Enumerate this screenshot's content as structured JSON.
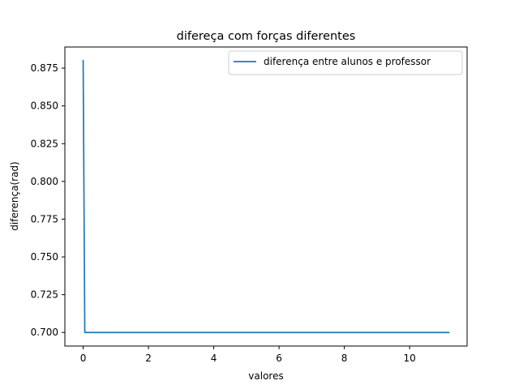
{
  "chart_data": {
    "type": "line",
    "title": "difereça com forças diferentes",
    "xlabel": "valores",
    "ylabel": "diferença(rad)",
    "xlim": [
      -0.56,
      11.76
    ],
    "ylim": [
      0.691,
      0.889
    ],
    "x_ticks": [
      0,
      2,
      4,
      6,
      8,
      10
    ],
    "x_tick_labels": [
      "0",
      "2",
      "4",
      "6",
      "8",
      "10"
    ],
    "y_ticks": [
      0.7,
      0.725,
      0.75,
      0.775,
      0.8,
      0.825,
      0.85,
      0.875
    ],
    "y_tick_labels": [
      "0.700",
      "0.725",
      "0.750",
      "0.775",
      "0.800",
      "0.825",
      "0.850",
      "0.875"
    ],
    "grid": false,
    "legend_position": "top-right",
    "series": [
      {
        "name": "diferença entre alunos e professor",
        "color": "#1f77b4",
        "points": [
          {
            "x": 0.0,
            "y": 0.88
          },
          {
            "x": 0.05,
            "y": 0.7
          },
          {
            "x": 11.2,
            "y": 0.7
          }
        ]
      }
    ]
  }
}
